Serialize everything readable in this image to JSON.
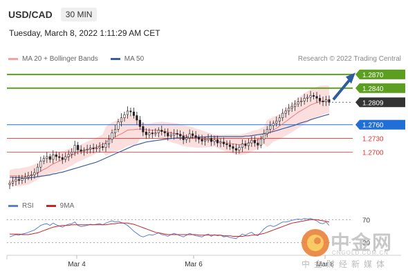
{
  "header": {
    "symbol": "USD/CAD",
    "timeframe": "30 MIN",
    "datetime": "Tuesday, March 8, 2022 1:11:29 AM CET"
  },
  "legend": {
    "ma20_label": "MA 20 + Bollinger Bands",
    "ma50_label": "MA 50",
    "ma20_color": "#e87b80",
    "ma50_color": "#3a5e9c"
  },
  "credit": "Research © 2022 Trading Central",
  "rsi_legend": {
    "rsi_label": "RSI",
    "ma_label": "9MA",
    "rsi_color": "#5b7fd4",
    "ma_color": "#cc2222"
  },
  "watermark": {
    "cn": "中金网",
    "en": "CNGOLD.COM.CN",
    "sub": "中金财经新媒体"
  },
  "chart_data": {
    "type": "candlestick",
    "x_ticks": [
      "Mar 4",
      "Mar 6",
      "Mar 8"
    ],
    "ylim": [
      1.2625,
      1.2885
    ],
    "levels": [
      {
        "label": "1.2870",
        "value": 1.287,
        "color": "#5c9e1f",
        "style": "resistance"
      },
      {
        "label": "1.2840",
        "value": 1.284,
        "color": "#5c9e1f",
        "style": "resistance"
      },
      {
        "label": "1.2809",
        "value": 1.2809,
        "color": "#333333",
        "style": "current"
      },
      {
        "label": "1.2760",
        "value": 1.276,
        "color": "#1f6fd6",
        "style": "pivot"
      },
      {
        "label": "1.2730",
        "value": 1.273,
        "color": "#d33",
        "style": "support"
      },
      {
        "label": "1.2700",
        "value": 1.27,
        "color": "#d33",
        "style": "support"
      }
    ],
    "close": [
      1.2632,
      1.2636,
      1.264,
      1.2638,
      1.2642,
      1.2645,
      1.2648,
      1.265,
      1.2655,
      1.2667,
      1.268,
      1.2686,
      1.269,
      1.2684,
      1.2694,
      1.269,
      1.2688,
      1.2684,
      1.269,
      1.2695,
      1.27,
      1.2715,
      1.2705,
      1.2702,
      1.2704,
      1.2706,
      1.2709,
      1.2707,
      1.2709,
      1.2712,
      1.271,
      1.2718,
      1.2728,
      1.2742,
      1.275,
      1.2766,
      1.2775,
      1.2782,
      1.279,
      1.2788,
      1.278,
      1.277,
      1.2756,
      1.2744,
      1.2738,
      1.2742,
      1.274,
      1.2742,
      1.2748,
      1.2745,
      1.2742,
      1.2735,
      1.2737,
      1.2741,
      1.2739,
      1.2735,
      1.2727,
      1.2731,
      1.274,
      1.2736,
      1.2732,
      1.2728,
      1.2724,
      1.2727,
      1.273,
      1.2723,
      1.2727,
      1.272,
      1.2722,
      1.2718,
      1.2716,
      1.2712,
      1.2708,
      1.2704,
      1.271,
      1.2718,
      1.2714,
      1.272,
      1.2726,
      1.272,
      1.2715,
      1.2728,
      1.274,
      1.275,
      1.2758,
      1.2763,
      1.2768,
      1.2775,
      1.2785,
      1.279,
      1.2796,
      1.28,
      1.2805,
      1.281,
      1.2812,
      1.2818,
      1.282,
      1.2824,
      1.2822,
      1.2818,
      1.2812,
      1.281,
      1.2815,
      1.2809
    ],
    "ma20": [
      1.2648,
      1.2648,
      1.2648,
      1.2647,
      1.2647,
      1.2647,
      1.2647,
      1.2649,
      1.2651,
      1.2654,
      1.2658,
      1.2662,
      1.2665,
      1.267,
      1.2674,
      1.2677,
      1.268,
      1.2683,
      1.2686,
      1.269,
      1.2693,
      1.2697,
      1.27,
      1.2702,
      1.2704,
      1.2706,
      1.2707,
      1.2709,
      1.2711,
      1.2714,
      1.2717,
      1.2721,
      1.2726,
      1.273,
      1.2733,
      1.2737,
      1.274,
      1.2744,
      1.2748,
      1.2749,
      1.2749,
      1.275,
      1.275,
      1.275,
      1.2749,
      1.2748,
      1.2748,
      1.2748,
      1.2747,
      1.2747,
      1.2745,
      1.2744,
      1.2742,
      1.2741,
      1.274,
      1.2738,
      1.2736,
      1.2735,
      1.2734,
      1.2733,
      1.2731,
      1.273,
      1.2729,
      1.2728,
      1.2727,
      1.2726,
      1.2725,
      1.2724,
      1.2722,
      1.2721,
      1.272,
      1.2719,
      1.2718,
      1.2717,
      1.2716,
      1.2717,
      1.2718,
      1.272,
      1.2723,
      1.2725,
      1.2727,
      1.2731,
      1.2735,
      1.2739,
      1.2743,
      1.2748,
      1.2752,
      1.2757,
      1.2762,
      1.2767,
      1.2772,
      1.2777,
      1.2782,
      1.2787,
      1.2791,
      1.2795,
      1.2799,
      1.2803,
      1.2806,
      1.2808,
      1.281,
      1.2811,
      1.2812,
      1.2812
    ],
    "ma50": [
      1.2645,
      1.2645,
      1.2644,
      1.2644,
      1.2643,
      1.2643,
      1.2643,
      1.2644,
      1.2645,
      1.2646,
      1.2647,
      1.2648,
      1.2649,
      1.265,
      1.2652,
      1.2653,
      1.2655,
      1.2656,
      1.2658,
      1.266,
      1.2662,
      1.2664,
      1.2666,
      1.2668,
      1.267,
      1.2672,
      1.2674,
      1.2676,
      1.2678,
      1.2681,
      1.2684,
      1.2687,
      1.269,
      1.2693,
      1.2696,
      1.2699,
      1.2702,
      1.2705,
      1.2708,
      1.2711,
      1.2714,
      1.2716,
      1.2718,
      1.272,
      1.2722,
      1.2723,
      1.2724,
      1.2725,
      1.2726,
      1.2727,
      1.2728,
      1.2729,
      1.273,
      1.273,
      1.2731,
      1.2731,
      1.2731,
      1.2732,
      1.2732,
      1.2732,
      1.2733,
      1.2733,
      1.2733,
      1.2733,
      1.2734,
      1.2734,
      1.2734,
      1.2734,
      1.2734,
      1.2734,
      1.2734,
      1.2734,
      1.2734,
      1.2734,
      1.2734,
      1.2734,
      1.2735,
      1.2735,
      1.2736,
      1.2737,
      1.2738,
      1.2739,
      1.274,
      1.2742,
      1.2743,
      1.2745,
      1.2747,
      1.2749,
      1.2751,
      1.2753,
      1.2755,
      1.2757,
      1.2759,
      1.2762,
      1.2764,
      1.2766,
      1.2768,
      1.2771,
      1.2773,
      1.2775,
      1.2777,
      1.2779,
      1.2781,
      1.2783
    ],
    "rsi_levels": [
      {
        "label": "70",
        "value": 70
      },
      {
        "label": "30",
        "value": 30
      }
    ],
    "rsi_ylim": [
      20,
      80
    ],
    "rsi": [
      40,
      42,
      44,
      43,
      45,
      46,
      48,
      50,
      52,
      56,
      60,
      62,
      63,
      60,
      64,
      61,
      59,
      57,
      60,
      62,
      63,
      66,
      60,
      58,
      59,
      60,
      62,
      61,
      62,
      63,
      61,
      64,
      66,
      68,
      66,
      67,
      65,
      63,
      60,
      55,
      50,
      46,
      42,
      40,
      42,
      44,
      43,
      45,
      47,
      44,
      43,
      41,
      44,
      46,
      44,
      42,
      40,
      43,
      46,
      44,
      42,
      41,
      40,
      43,
      45,
      41,
      44,
      42,
      43,
      40,
      41,
      39,
      38,
      37,
      41,
      45,
      43,
      46,
      48,
      44,
      42,
      48,
      54,
      58,
      60,
      58,
      60,
      63,
      66,
      66,
      67,
      69,
      70,
      71,
      70,
      72,
      71,
      72,
      70,
      68,
      64,
      63,
      66,
      60
    ],
    "rsi_ma": [
      45,
      45,
      45,
      45,
      44,
      44,
      44,
      45,
      46,
      47,
      49,
      51,
      53,
      55,
      57,
      58,
      59,
      60,
      60,
      60,
      61,
      61,
      61,
      61,
      61,
      61,
      61,
      61,
      61,
      61,
      61,
      61,
      62,
      63,
      63,
      64,
      64,
      64,
      64,
      63,
      62,
      60,
      58,
      56,
      54,
      52,
      50,
      48,
      47,
      46,
      45,
      44,
      44,
      44,
      44,
      44,
      44,
      44,
      44,
      44,
      44,
      43,
      43,
      43,
      43,
      43,
      43,
      43,
      43,
      42,
      42,
      42,
      41,
      41,
      41,
      41,
      42,
      42,
      43,
      43,
      44,
      45,
      46,
      48,
      50,
      52,
      54,
      56,
      58,
      60,
      62,
      64,
      65,
      66,
      67,
      68,
      69,
      70,
      70,
      70,
      69,
      68,
      67,
      66
    ]
  }
}
